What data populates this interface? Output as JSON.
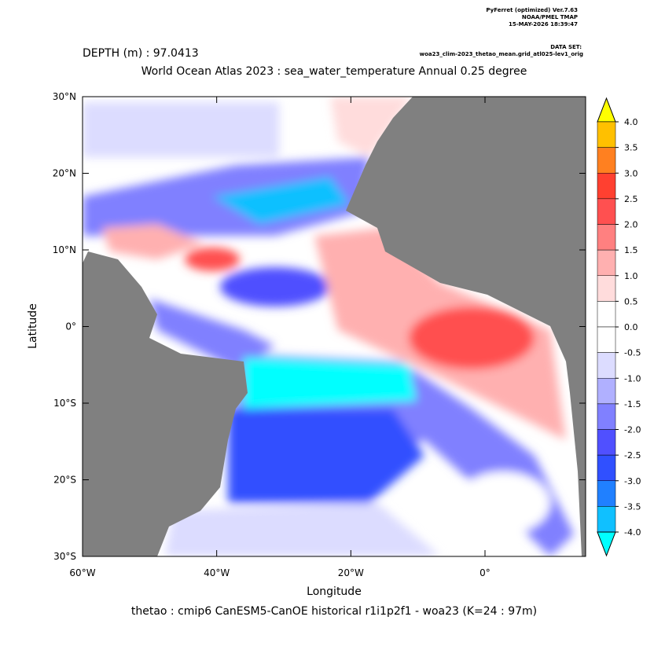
{
  "header": {
    "program": "PyFerret (optimized) Ver.7.63",
    "org": "NOAA/PMEL TMAP",
    "date": "15-MAY-2026 18:39:47",
    "dataset_label": "DATA SET:",
    "dataset": "woa23_clim-2023_thetao_mean.grid_atl025-lev1_orig"
  },
  "chart_data": {
    "type": "map",
    "depth_label": "DEPTH (m) : 97.0413",
    "title": "World Ocean Atlas 2023 : sea_water_temperature Annual  0.25 degree",
    "x_label": "Longitude",
    "y_label": "Latitude",
    "footer": "thetao : cmip6 CanESM5-CanOE historical r1i1p2f1 - woa23  (K=24 : 97m)",
    "xlim": [
      -60,
      15
    ],
    "ylim": [
      -30,
      30
    ],
    "xticks": [
      {
        "value": -60,
        "label": "60°W"
      },
      {
        "value": -40,
        "label": "40°W"
      },
      {
        "value": -20,
        "label": "20°W"
      },
      {
        "value": 0,
        "label": "0°"
      }
    ],
    "yticks": [
      {
        "value": -30,
        "label": "30°S"
      },
      {
        "value": -20,
        "label": "20°S"
      },
      {
        "value": -10,
        "label": "10°S"
      },
      {
        "value": 0,
        "label": "0°"
      },
      {
        "value": 10,
        "label": "10°N"
      },
      {
        "value": 20,
        "label": "20°N"
      },
      {
        "value": 30,
        "label": "30°N"
      }
    ],
    "colorbar": {
      "levels": [
        {
          "value": 4,
          "label": "4.0"
        },
        {
          "value": 3.5,
          "label": "3.5"
        },
        {
          "value": 3,
          "label": "3.0"
        },
        {
          "value": 2.5,
          "label": "2.5"
        },
        {
          "value": 2,
          "label": "2.0"
        },
        {
          "value": 1.5,
          "label": "1.5"
        },
        {
          "value": 1,
          "label": "1.0"
        },
        {
          "value": 0.5,
          "label": "0.5"
        },
        {
          "value": 0,
          "label": "0.0"
        },
        {
          "value": -0.5,
          "label": "-0.5"
        },
        {
          "value": -1,
          "label": "-1.0"
        },
        {
          "value": -1.5,
          "label": "-1.5"
        },
        {
          "value": -2,
          "label": "-2.0"
        },
        {
          "value": -2.5,
          "label": "-2.5"
        },
        {
          "value": -3,
          "label": "-3.0"
        },
        {
          "value": -3.5,
          "label": "-3.5"
        },
        {
          "value": -4,
          "label": "-4.0"
        }
      ],
      "colors": [
        "#ffff00",
        "#ffc000",
        "#ff8020",
        "#ff4030",
        "#ff5050",
        "#ff8080",
        "#ffb0b0",
        "#ffdcdc",
        "#ffffff",
        "#ffffff",
        "#dcdcff",
        "#b0b0ff",
        "#8080ff",
        "#5050ff",
        "#3050ff",
        "#2080ff",
        "#10c0ff",
        "#00ffff"
      ]
    }
  }
}
